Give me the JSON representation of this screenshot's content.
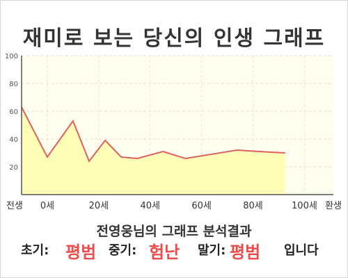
{
  "title": "재미로 보는 당신의 인생 그래프",
  "summary": {
    "heading": "전영웅님의 그래프 분석결과",
    "early_label": "초기:",
    "early_value": "평범",
    "middle_label": "중기:",
    "middle_value": "험난",
    "late_label": "말기:",
    "late_value": "평범",
    "suffix": "입니다"
  },
  "colors": {
    "line": "#e06060",
    "fill": "#ffffb8",
    "plot_background": "#fffff0",
    "accent": "#ee4b4b"
  },
  "chart_data": {
    "type": "area",
    "x": [
      -1,
      7,
      15,
      20,
      25,
      30,
      35,
      43,
      50,
      58,
      66,
      73,
      81
    ],
    "y": [
      63,
      27,
      53,
      24,
      39,
      27,
      26,
      31,
      26,
      29,
      32,
      31,
      30
    ],
    "x_ticks": [
      {
        "value": -1,
        "label": "전생"
      },
      {
        "value": 7,
        "label": "0세"
      },
      {
        "value": 23,
        "label": "20세"
      },
      {
        "value": 39,
        "label": "40세"
      },
      {
        "value": 55,
        "label": "60세"
      },
      {
        "value": 71,
        "label": "80세"
      },
      {
        "value": 87,
        "label": "100세"
      },
      {
        "value": 96,
        "label": "환생"
      }
    ],
    "y_ticks": [
      20,
      40,
      60,
      80,
      100
    ],
    "ylim": [
      0,
      100
    ],
    "xlim": [
      -1,
      96
    ],
    "grid": true
  }
}
